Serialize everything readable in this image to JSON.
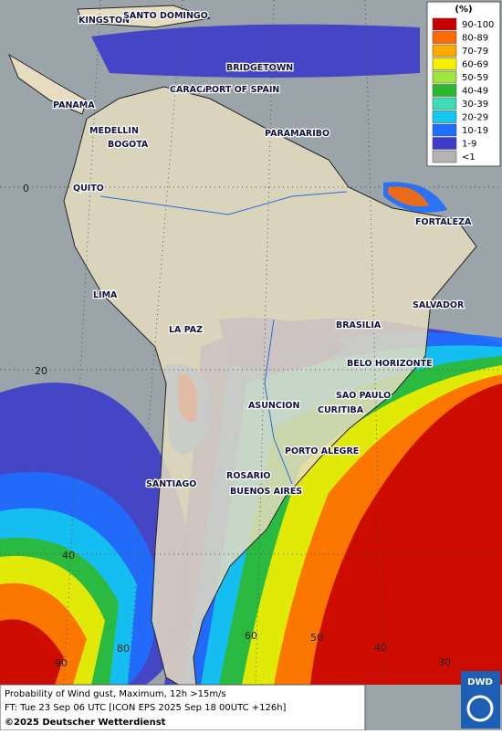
{
  "legend": {
    "unit": "(%)",
    "items": [
      {
        "label": "90-100",
        "color": "#c80000"
      },
      {
        "label": "80-89",
        "color": "#ff6a00"
      },
      {
        "label": "70-79",
        "color": "#ffaa00"
      },
      {
        "label": "60-69",
        "color": "#f5f000"
      },
      {
        "label": "50-59",
        "color": "#9ee63c"
      },
      {
        "label": "40-49",
        "color": "#2db92d"
      },
      {
        "label": "30-39",
        "color": "#3cdcb4"
      },
      {
        "label": "20-29",
        "color": "#14c8f0"
      },
      {
        "label": "10-19",
        "color": "#1e6eff"
      },
      {
        "label": "1-9",
        "color": "#3c3cc8"
      },
      {
        "label": "<1",
        "color": "#b4b4b4"
      }
    ]
  },
  "cities": [
    "KINGSTON",
    "SANTO DOMINGO",
    "BRIDGETOWN",
    "CARACAS",
    "PORT OF SPAIN",
    "PANAMA",
    "MEDELLIN",
    "BOGOTA",
    "PARAMARIBO",
    "QUITO",
    "FORTALEZA",
    "LIMA",
    "SALVADOR",
    "LA PAZ",
    "BRASILIA",
    "BELO HORIZONTE",
    "SAO PAULO",
    "ASUNCION",
    "CURITIBA",
    "PORTO ALEGRE",
    "SANTIAGO",
    "ROSARIO",
    "BUENOS AIRES"
  ],
  "grid_labels": [
    "0",
    "20",
    "40",
    "90",
    "80",
    "60",
    "50",
    "40",
    "30"
  ],
  "footer": {
    "line1": "Probability of Wind gust, Maximum, 12h >15m/s",
    "line2": "FT: Tue 23 Sep 06 UTC [ICON EPS 2025 Sep 18 00UTC +126h]",
    "copyright": "©2025 Deutscher Wetterdienst"
  },
  "logo": "DWD"
}
